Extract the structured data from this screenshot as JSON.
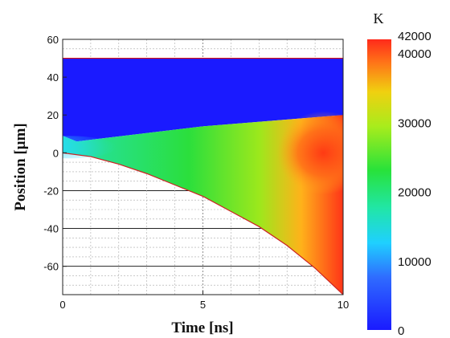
{
  "chart_data": {
    "type": "heatmap",
    "xlabel": "Time [ns]",
    "ylabel": "Position [μm]",
    "xlim": [
      0,
      10
    ],
    "ylim": [
      -75,
      60
    ],
    "x_ticks": [
      "0",
      "5",
      "10"
    ],
    "y_ticks": [
      "60",
      "40",
      "20",
      "0",
      "-20",
      "-40",
      "-60"
    ],
    "x_tick_values": [
      0,
      5,
      10
    ],
    "y_tick_values": [
      60,
      40,
      20,
      0,
      -20,
      -40,
      -60
    ],
    "grid": true,
    "colorbar": {
      "unit": "K",
      "range": [
        0,
        42000
      ],
      "ticks": [
        "42000",
        "40000",
        "30000",
        "20000",
        "10000",
        "0"
      ],
      "tick_values": [
        42000,
        40000,
        30000,
        20000,
        10000,
        0
      ]
    },
    "regions": {
      "top_boundary": {
        "time": [
          0,
          10
        ],
        "position": [
          50,
          50
        ]
      },
      "interface": {
        "time": [
          0,
          0.5,
          5,
          10
        ],
        "position": [
          9,
          6,
          14,
          20
        ]
      },
      "bottom_boundary": {
        "time": [
          0,
          1,
          2,
          3,
          4,
          5,
          6,
          7,
          8,
          9,
          10
        ],
        "position": [
          0,
          -2,
          -6,
          -11,
          -17,
          -23,
          -31,
          -39,
          -49,
          -61,
          -75
        ]
      },
      "upper_layer_temperature_k": 2000,
      "hot_core": {
        "time": 9.3,
        "position": 0,
        "temperature_k": 42000
      }
    }
  }
}
